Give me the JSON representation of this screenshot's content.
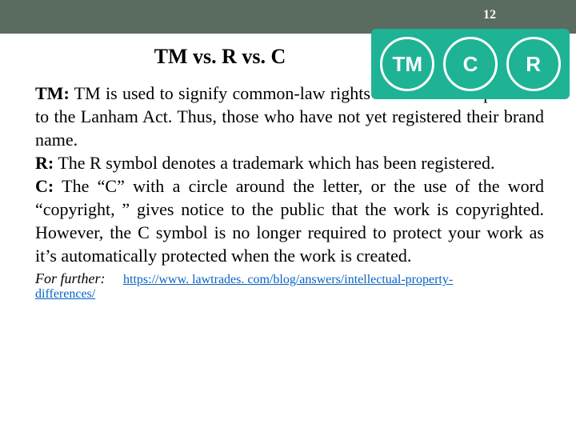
{
  "page_number": "12",
  "title": "TM vs. R vs. C",
  "badges": {
    "bg_color": "#1eb394",
    "border_color": "#ffffff",
    "text_color": "#ffffff",
    "items": [
      "TM",
      "C",
      "R"
    ]
  },
  "terms": {
    "tm_label": "TM:",
    "tm_text": " TM is used to signify common-law rights in a trademark pursuant to the Lanham Act. Thus, those who have not yet registered their brand name.",
    "r_label": "R:",
    "r_text": " The R symbol denotes a trademark which has been registered.",
    "c_label": "C:",
    "c_text": " The “C” with a circle around the letter, or the use of the word “copyright, ” gives notice to the public that the work is copyrighted. However, the C symbol is no longer required to protect your work as it’s automatically protected when the work is created."
  },
  "footer": {
    "label": "For further:",
    "url_part1": "https://www. lawtrades. com/blog/answers/intellectual-property-",
    "url_part2": "differences/"
  },
  "colors": {
    "header_bg": "#5a6b5f",
    "link_color": "#0563c1",
    "text_color": "#000000"
  },
  "typography": {
    "title_fontsize": 26,
    "body_fontsize": 22,
    "footer_fontsize": 18,
    "link_fontsize": 16
  }
}
